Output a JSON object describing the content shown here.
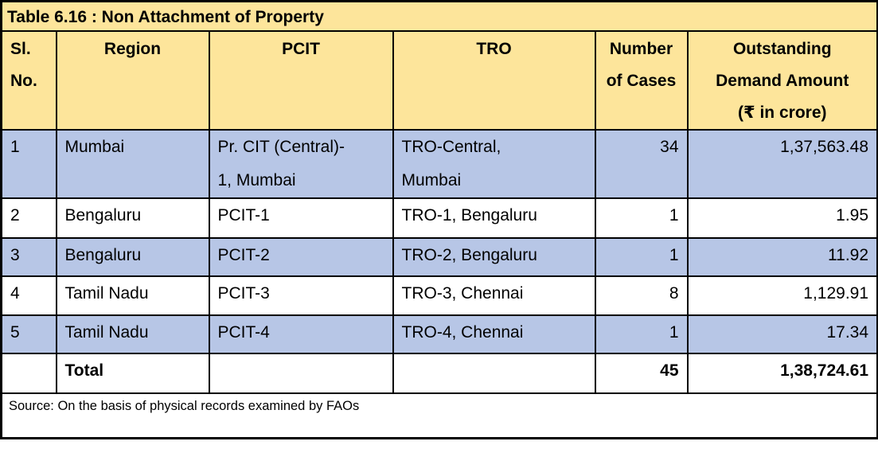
{
  "title": "Table 6.16 : Non Attachment of Property",
  "columns": [
    {
      "name": "sl-no",
      "lines": [
        "Sl.",
        "No."
      ]
    },
    {
      "name": "region",
      "lines": [
        "Region"
      ]
    },
    {
      "name": "pcit",
      "lines": [
        "PCIT"
      ]
    },
    {
      "name": "tro",
      "lines": [
        "TRO"
      ]
    },
    {
      "name": "cases",
      "lines": [
        "Number",
        "of Cases"
      ]
    },
    {
      "name": "amount",
      "lines": [
        "Outstanding",
        "Demand Amount",
        "(₹ in crore)"
      ]
    }
  ],
  "rows": [
    {
      "sl": "1",
      "region": "Mumbai",
      "pcit": [
        "Pr. CIT (Central)-",
        "1, Mumbai"
      ],
      "tro": [
        "TRO-Central,",
        "Mumbai"
      ],
      "cases": "34",
      "amount": "1,37,563.48",
      "shaded": true
    },
    {
      "sl": "2",
      "region": "Bengaluru",
      "pcit": [
        "PCIT-1"
      ],
      "tro": [
        "TRO-1, Bengaluru"
      ],
      "cases": "1",
      "amount": "1.95",
      "shaded": false
    },
    {
      "sl": "3",
      "region": "Bengaluru",
      "pcit": [
        "PCIT-2"
      ],
      "tro": [
        "TRO-2, Bengaluru"
      ],
      "cases": "1",
      "amount": "11.92",
      "shaded": true
    },
    {
      "sl": "4",
      "region": "Tamil Nadu",
      "pcit": [
        "PCIT-3"
      ],
      "tro": [
        "TRO-3, Chennai"
      ],
      "cases": "8",
      "amount": "1,129.91",
      "shaded": false
    },
    {
      "sl": "5",
      "region": "Tamil Nadu",
      "pcit": [
        "PCIT-4"
      ],
      "tro": [
        "TRO-4, Chennai"
      ],
      "cases": "1",
      "amount": "17.34",
      "shaded": true
    }
  ],
  "total": {
    "label": "Total",
    "cases": "45",
    "amount": "1,38,724.61"
  },
  "source": "Source: On the basis of physical records examined by FAOs",
  "colors": {
    "header_bg": "#FDE59B",
    "shaded_row_bg": "#B7C6E6",
    "border": "#000000",
    "text": "#000000",
    "page_bg": "#FFFFFF"
  }
}
